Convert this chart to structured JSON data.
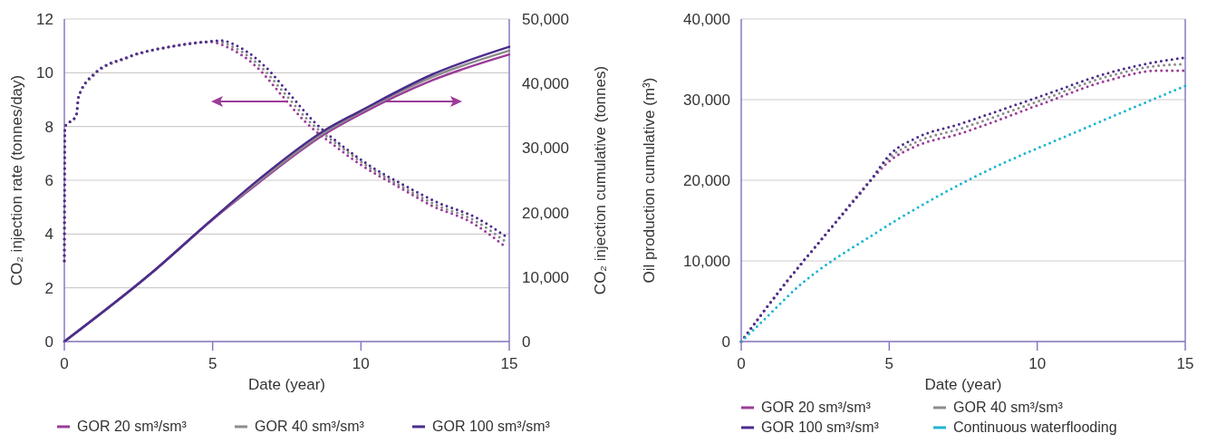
{
  "chart_data": [
    {
      "type": "line",
      "xlabel": "Date (year)",
      "ylabel": "CO₂ injection rate (tonnes/day)",
      "y2label": "CO₂ injection cumulative (tonnes)",
      "xlim": [
        0,
        15
      ],
      "xticks": [
        0,
        5,
        10,
        15
      ],
      "ylim": [
        0,
        12
      ],
      "yticks": [
        0,
        2,
        4,
        6,
        8,
        10,
        12
      ],
      "y2lim": [
        0,
        50000
      ],
      "y2ticks": [
        {
          "value": 0,
          "label": "0"
        },
        {
          "value": 10000,
          "label": "10,000"
        },
        {
          "value": 20000,
          "label": "20,000"
        },
        {
          "value": 30000,
          "label": "30,000"
        },
        {
          "value": 40000,
          "label": "40,000"
        },
        {
          "value": 50000,
          "label": "50,000"
        }
      ],
      "grid": "y",
      "legend": "bottom",
      "marker": "none",
      "series": [
        {
          "color": "#9b3c97",
          "line_style": "dotted",
          "x": [
            0,
            0.02,
            0.1,
            0.4,
            0.48,
            0.98,
            2.1,
            3.73,
            4.77,
            4.9,
            5.6,
            6.5,
            7.3,
            8.1,
            9.1,
            10.1,
            11.2,
            12.4,
            13.7,
            14.9
          ],
          "values": [
            3,
            8,
            8.1,
            8.4,
            9.1,
            9.9,
            10.55,
            11.0,
            11.15,
            11.15,
            10.9,
            10.2,
            9.2,
            8.2,
            7.3,
            6.5,
            5.8,
            5.05,
            4.45,
            3.5
          ]
        },
        {
          "color": "#8c8c8c",
          "line_style": "dotted",
          "x": [
            0,
            0.02,
            0.1,
            0.4,
            0.48,
            0.98,
            2.1,
            3.73,
            4.77,
            5.05,
            5.8,
            6.65,
            7.45,
            8.25,
            9.25,
            10.25,
            11.3,
            12.5,
            13.8,
            14.9
          ],
          "values": [
            3,
            8,
            8.1,
            8.4,
            9.1,
            9.9,
            10.55,
            11.0,
            11.15,
            11.18,
            10.9,
            10.2,
            9.2,
            8.2,
            7.3,
            6.5,
            5.82,
            5.1,
            4.52,
            3.7
          ]
        },
        {
          "color": "#4b2c8c",
          "line_style": "dotted",
          "x": [
            0,
            0.02,
            0.1,
            0.4,
            0.48,
            0.98,
            2.1,
            3.73,
            4.77,
            5.26,
            5.99,
            6.8,
            7.6,
            8.4,
            9.35,
            10.36,
            11.4,
            12.6,
            13.9,
            14.9
          ],
          "values": [
            3,
            8,
            8.1,
            8.4,
            9.1,
            9.94,
            10.57,
            11.0,
            11.15,
            11.2,
            10.9,
            10.2,
            9.2,
            8.2,
            7.3,
            6.5,
            5.85,
            5.17,
            4.6,
            3.9
          ]
        },
        {
          "name": "GOR 20 sm³/sm³",
          "color": "#9b3c97",
          "line_style": "solid",
          "axis": "y2",
          "x": [
            0,
            2.93,
            4.95,
            6.6,
            8.83,
            9.96,
            12.4,
            15
          ],
          "values": [
            0,
            10600,
            18700,
            24800,
            32300,
            35200,
            40500,
            44500
          ]
        },
        {
          "name": "GOR 40 sm³/sm³",
          "color": "#8c8c8c",
          "line_style": "solid",
          "axis": "y2",
          "x": [
            0,
            2.93,
            4.95,
            6.6,
            8.83,
            9.96,
            12.4,
            15
          ],
          "values": [
            0,
            10600,
            18800,
            25000,
            32600,
            35500,
            41000,
            45100
          ]
        },
        {
          "name": "GOR 100 sm³/sm³",
          "color": "#4b2c8c",
          "line_style": "solid",
          "axis": "y2",
          "x": [
            0,
            2.93,
            4.95,
            6.6,
            8.83,
            9.96,
            12.4,
            15
          ],
          "values": [
            0,
            10600,
            18800,
            25300,
            32900,
            35700,
            41400,
            45700
          ]
        }
      ]
    },
    {
      "type": "line",
      "xlabel": "Date (year)",
      "ylabel": "Oil production cumulative (m³)",
      "xlim": [
        0,
        15
      ],
      "xticks": [
        0,
        5,
        10,
        15
      ],
      "ylim": [
        0,
        40000
      ],
      "yticks": [
        {
          "value": 0,
          "label": "0"
        },
        {
          "value": 10000,
          "label": "10,000"
        },
        {
          "value": 20000,
          "label": "20,000"
        },
        {
          "value": 30000,
          "label": "30,000"
        },
        {
          "value": 40000,
          "label": "40,000"
        }
      ],
      "grid": "y",
      "legend": "bottom",
      "marker": "none",
      "line_style": "dotted",
      "series": [
        {
          "name": "GOR 20 sm³/sm³",
          "color": "#9b3c97",
          "x": [
            0,
            1.38,
            2.9,
            4.35,
            5.05,
            5.88,
            7.4,
            9.95,
            12.5,
            14.05,
            15
          ],
          "values": [
            0,
            6700,
            13500,
            19900,
            22500,
            24200,
            25800,
            29200,
            32500,
            33600,
            33600
          ]
        },
        {
          "name": "GOR 40 sm³/sm³",
          "color": "#8c8c8c",
          "x": [
            0,
            1.38,
            2.9,
            4.35,
            5.05,
            5.88,
            7.4,
            9.95,
            12.5,
            14.05,
            15
          ],
          "values": [
            0,
            6700,
            13500,
            19900,
            22900,
            24700,
            26400,
            29700,
            33000,
            34200,
            34400
          ]
        },
        {
          "name": "GOR 100 sm³/sm³",
          "color": "#4b2c8c",
          "x": [
            0,
            1.38,
            2.9,
            4.35,
            5.05,
            5.88,
            7.4,
            9.95,
            12.5,
            14.05,
            15
          ],
          "values": [
            0,
            6700,
            13500,
            19900,
            23300,
            25200,
            27000,
            30200,
            33400,
            34700,
            35200
          ]
        },
        {
          "name": "Continuous waterflooding",
          "color": "#1fb5d0",
          "x": [
            0,
            0.77,
            1.8,
            4.56,
            7.6,
            11.7,
            15
          ],
          "values": [
            0,
            2700,
            6400,
            13500,
            19900,
            26600,
            31700
          ]
        }
      ]
    }
  ]
}
